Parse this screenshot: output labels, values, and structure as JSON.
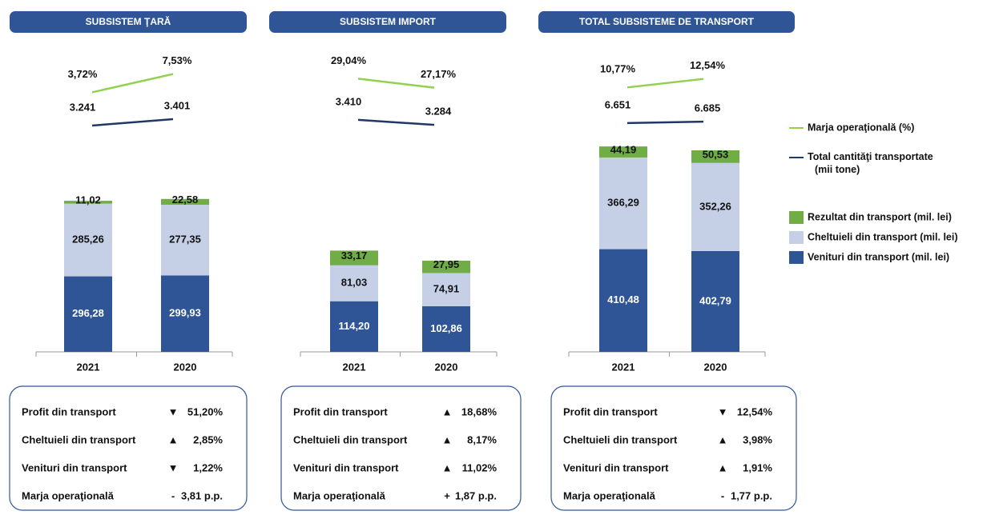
{
  "chart_data": [
    {
      "type": "bar",
      "title": "SUBSISTEM ŢARĂ",
      "categories": [
        "2021",
        "2020"
      ],
      "ylim": [
        0,
        800
      ],
      "series": [
        {
          "name": "Marja operaţională (%)",
          "type": "line",
          "color": "#92d050",
          "values": [
            3.72,
            7.53
          ],
          "value_labels": [
            "3,72%",
            "7,53%"
          ]
        },
        {
          "name": "Total cantităţi transportate (mii tone)",
          "type": "line",
          "color": "#1f3864",
          "values": [
            3241,
            3401
          ],
          "value_labels": [
            "3.241",
            "3.401"
          ]
        },
        {
          "name": "Rezultat din transport (mil. lei)",
          "color": "#70ad47",
          "values": [
            11.02,
            22.58
          ],
          "value_labels": [
            "11,02",
            "22,58"
          ]
        },
        {
          "name": "Cheltuieli din transport (mil. lei)",
          "color": "#c5cfe6",
          "values": [
            285.26,
            277.35
          ],
          "value_labels": [
            "285,26",
            "277,35"
          ]
        },
        {
          "name": "Venituri din transport (mil. lei)",
          "color": "#2f5597",
          "values": [
            296.28,
            299.93
          ],
          "value_labels": [
            "296,28",
            "299,93"
          ]
        }
      ],
      "summary": [
        [
          "Profit din transport",
          "▼",
          "51,20%"
        ],
        [
          "Cheltuieli din transport",
          "▲",
          "2,85%"
        ],
        [
          "Venituri din transport",
          "▼",
          "1,22%"
        ],
        [
          "Marja operaţională",
          "-",
          "3,81 p.p."
        ]
      ]
    },
    {
      "type": "bar",
      "title": "SUBSISTEM  IMPORT",
      "categories": [
        "2021",
        "2020"
      ],
      "ylim": [
        0,
        460
      ],
      "series": [
        {
          "name": "Marja operaţională (%)",
          "type": "line",
          "color": "#92d050",
          "values": [
            29.04,
            27.17
          ],
          "value_labels": [
            "29,04%",
            "27,17%"
          ]
        },
        {
          "name": "Total cantităţi transportate (mii tone)",
          "type": "line",
          "color": "#1f3864",
          "values": [
            3410,
            3284
          ],
          "value_labels": [
            "3.410",
            "3.284"
          ]
        },
        {
          "name": "Rezultat din transport (mil. lei)",
          "color": "#70ad47",
          "values": [
            33.17,
            27.95
          ],
          "value_labels": [
            "33,17",
            "27,95"
          ]
        },
        {
          "name": "Cheltuieli din transport (mil. lei)",
          "color": "#c5cfe6",
          "values": [
            81.03,
            74.91
          ],
          "value_labels": [
            "81,03",
            "74,91"
          ]
        },
        {
          "name": "Venituri din transport (mil. lei)",
          "color": "#2f5597",
          "values": [
            114.2,
            102.86
          ],
          "value_labels": [
            "114,20",
            "102,86"
          ]
        }
      ],
      "summary": [
        [
          "Profit din transport",
          "▲",
          "18,68%"
        ],
        [
          "Cheltuieli din transport",
          "▲",
          "8,17%"
        ],
        [
          "Venituri din transport",
          "▲",
          "11,02%"
        ],
        [
          "Marja operaţională",
          "+",
          "1,87 p.p."
        ]
      ]
    },
    {
      "type": "bar",
      "title": "TOTAL SUBSISTEME DE TRANSPORT",
      "categories": [
        "2021",
        "2020"
      ],
      "ylim": [
        0,
        815
      ],
      "series": [
        {
          "name": "Marja operaţională (%)",
          "type": "line",
          "color": "#92d050",
          "values": [
            10.77,
            12.54
          ],
          "value_labels": [
            "10,77%",
            "12,54%"
          ]
        },
        {
          "name": "Total cantităţi transportate (mii tone)",
          "type": "line",
          "color": "#1f3864",
          "values": [
            6651,
            6685
          ],
          "value_labels": [
            "6.651",
            "6.685"
          ]
        },
        {
          "name": "Rezultat din transport (mil. lei)",
          "color": "#70ad47",
          "values": [
            44.19,
            50.53
          ],
          "value_labels": [
            "44,19",
            "50,53"
          ]
        },
        {
          "name": "Cheltuieli din transport (mil. lei)",
          "color": "#c5cfe6",
          "values": [
            366.29,
            352.26
          ],
          "value_labels": [
            "366,29",
            "352,26"
          ]
        },
        {
          "name": "Venituri din transport (mil. lei)",
          "color": "#2f5597",
          "values": [
            410.48,
            402.79
          ],
          "value_labels": [
            "410,48",
            "402,79"
          ]
        }
      ],
      "summary": [
        [
          "Profit din transport",
          "▼",
          "12,54%"
        ],
        [
          "Cheltuieli din transport",
          "▲",
          "3,98%"
        ],
        [
          "Venituri din transport",
          "▲",
          "1,91%"
        ],
        [
          "Marja operaţională",
          "-",
          "1,77 p.p."
        ]
      ]
    }
  ]
}
